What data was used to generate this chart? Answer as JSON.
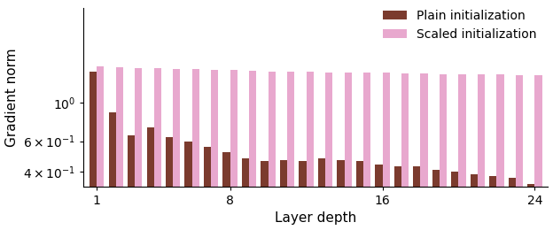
{
  "plain_values": [
    1.5,
    0.88,
    0.65,
    0.72,
    0.63,
    0.6,
    0.56,
    0.52,
    0.48,
    0.46,
    0.47,
    0.46,
    0.48,
    0.47,
    0.46,
    0.44,
    0.43,
    0.43,
    0.41,
    0.4,
    0.39,
    0.38,
    0.37,
    0.34
  ],
  "scaled_values": [
    1.62,
    1.6,
    1.58,
    1.57,
    1.56,
    1.55,
    1.54,
    1.53,
    1.52,
    1.51,
    1.5,
    1.5,
    1.49,
    1.49,
    1.48,
    1.48,
    1.47,
    1.47,
    1.46,
    1.46,
    1.45,
    1.45,
    1.44,
    1.43
  ],
  "plain_color": "#7B3B2E",
  "scaled_color": "#E8A8CE",
  "xlabel": "Layer depth",
  "ylabel": "Gradient norm",
  "legend_plain": "Plain initialization",
  "legend_scaled": "Scaled initialization",
  "ylim_min": 0.33,
  "ylim_max": 3.5,
  "yticks": [
    0.4,
    0.6,
    1.0
  ],
  "xticks": [
    1,
    8,
    16,
    24
  ],
  "n_layers": 24,
  "bar_width": 0.38
}
